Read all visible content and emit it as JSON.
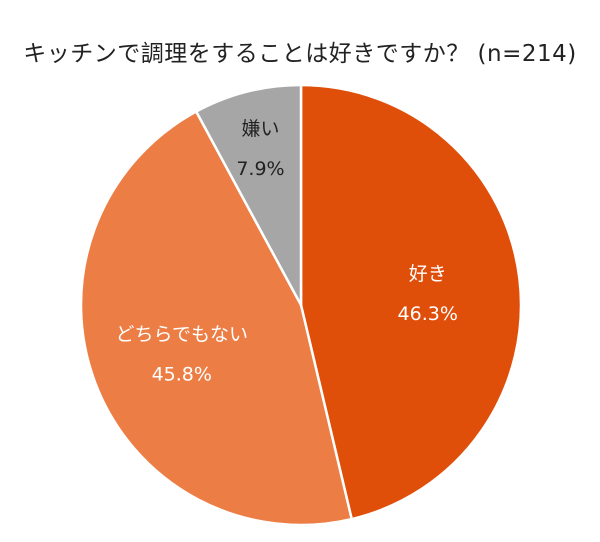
{
  "chart_data": {
    "type": "pie",
    "title": "キッチンで調理をすることは好きですか？ (n=214)",
    "slices": [
      {
        "label": "好き",
        "value": 46.3,
        "value_label": "46.3%",
        "color": "#E04F0A",
        "text_color": "#ffffff"
      },
      {
        "label": "どちらでもない",
        "value": 45.8,
        "value_label": "45.8%",
        "color": "#EC7E45",
        "text_color": "#ffffff"
      },
      {
        "label": "嫌い",
        "value": 7.9,
        "value_label": "7.9%",
        "color": "#A6A6A6",
        "text_color": "#222222"
      }
    ],
    "start": "top",
    "direction": "clockwise"
  }
}
